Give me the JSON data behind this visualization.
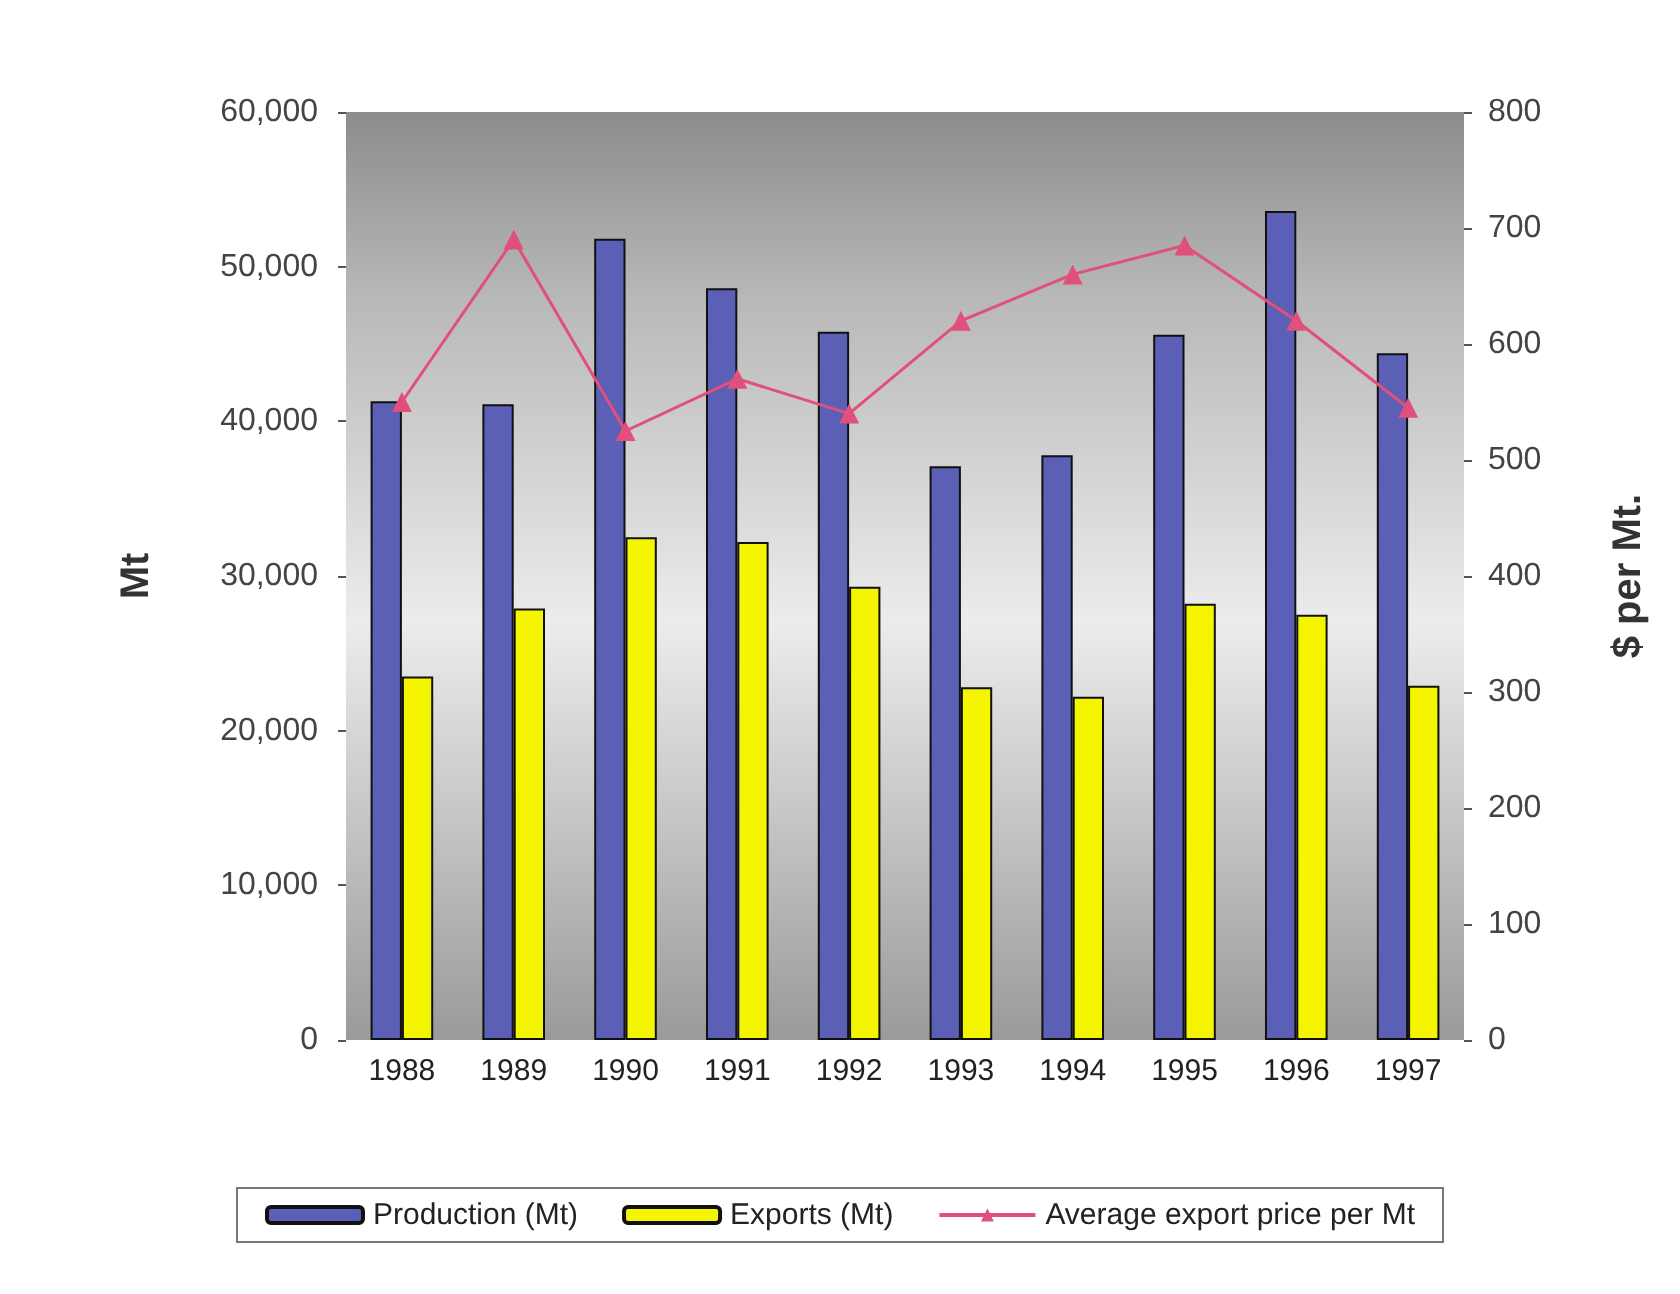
{
  "chart_data": {
    "type": "bar",
    "ylabel": "Mt",
    "y2label": "$ per Mt.",
    "categories": [
      "1988",
      "1989",
      "1990",
      "1991",
      "1992",
      "1993",
      "1994",
      "1995",
      "1996",
      "1997"
    ],
    "series": [
      {
        "name": "Production (Mt)",
        "color": "#5b5fb5",
        "values": [
          41300,
          41100,
          51800,
          48600,
          45800,
          37100,
          37800,
          45600,
          53600,
          44400
        ]
      },
      {
        "name": "Exports (Mt)",
        "color": "#f5f500",
        "values": [
          23500,
          27900,
          32500,
          32200,
          29300,
          22800,
          22200,
          28200,
          27500,
          22900
        ]
      },
      {
        "name": "Average export price per Mt",
        "type": "line",
        "axis": "y2",
        "color": "#e0507a",
        "marker": "triangle",
        "line_style": "solid",
        "values": [
          550,
          690,
          525,
          570,
          540,
          620,
          660,
          685,
          620,
          545
        ]
      }
    ],
    "ylim": [
      0,
      60000
    ],
    "yticks": [
      {
        "value": 0,
        "label": "0"
      },
      {
        "value": 10000,
        "label": "10,000"
      },
      {
        "value": 20000,
        "label": "20,000"
      },
      {
        "value": 30000,
        "label": "30,000"
      },
      {
        "value": 40000,
        "label": "40,000"
      },
      {
        "value": 50000,
        "label": "50,000"
      },
      {
        "value": 60000,
        "label": "60,000"
      }
    ],
    "y2lim": [
      0,
      800
    ],
    "y2ticks": [
      0,
      100,
      200,
      300,
      400,
      500,
      600,
      700,
      800
    ],
    "grid": false,
    "legend": "bottom"
  }
}
